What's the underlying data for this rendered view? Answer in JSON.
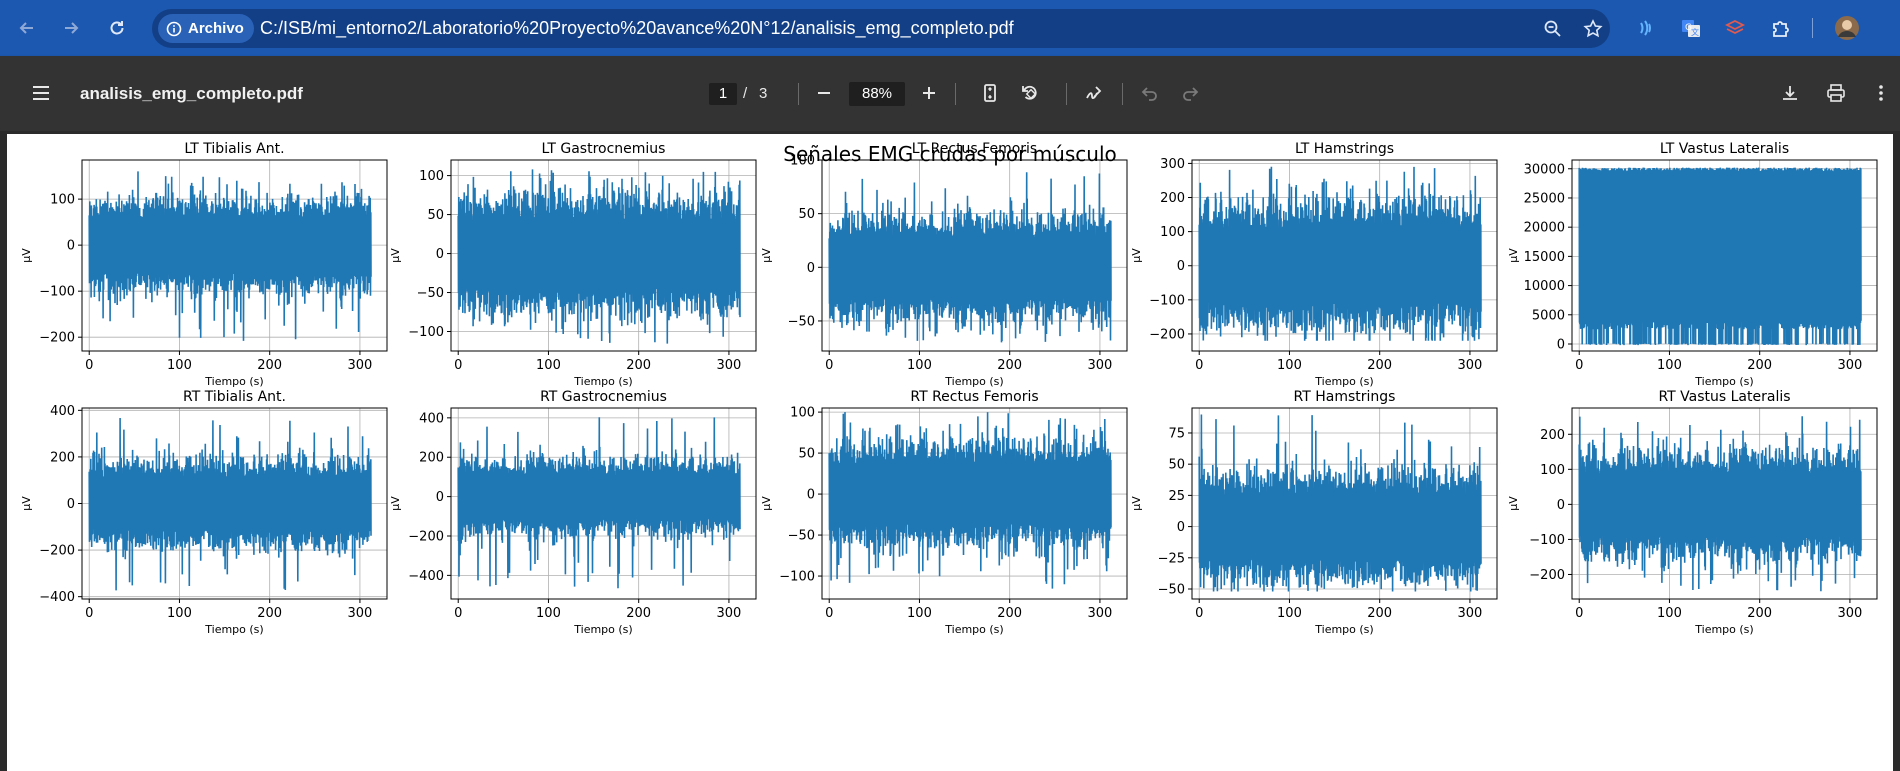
{
  "browser": {
    "secure_chip_label": "Archivo",
    "url": "C:/ISB/mi_entorno2/Laboratorio%20Proyecto%20avance%20N°12/analisis_emg_completo.pdf"
  },
  "pdf_toolbar": {
    "title": "analisis_emg_completo.pdf",
    "current_page": "1",
    "page_separator": "/",
    "total_pages": "3",
    "zoom": "88%"
  },
  "colors": {
    "signal": "#1f77b4",
    "browser_bar": "#1c58b0",
    "toolbar": "#333333"
  },
  "chart_data": {
    "type": "line",
    "title": "Señales EMG crudas por músculo",
    "subplots": [
      {
        "title": "LT Tibialis Ant.",
        "xlabel": "Tiempo (s)",
        "ylabel": "µV",
        "xlim": [
          -8,
          330
        ],
        "ylim": [
          -230,
          185
        ],
        "xticks": [
          0,
          100,
          200,
          300
        ],
        "yticks": [
          -200,
          -100,
          0,
          100
        ],
        "envelope_typical": 80,
        "envelope_peak": 170,
        "envelope_min": -210
      },
      {
        "title": "LT Gastrocnemius",
        "xlabel": "Tiempo (s)",
        "ylabel": "µV",
        "xlim": [
          -8,
          330
        ],
        "ylim": [
          -125,
          120
        ],
        "xticks": [
          0,
          100,
          200,
          300
        ],
        "yticks": [
          -100,
          -50,
          0,
          50,
          100
        ],
        "envelope_typical": 60,
        "envelope_peak": 108,
        "envelope_min": -118
      },
      {
        "title": "LT Rectus Femoris",
        "xlabel": "Tiempo (s)",
        "ylabel": "µV",
        "xlim": [
          -8,
          330
        ],
        "ylim": [
          -78,
          100
        ],
        "xticks": [
          0,
          100,
          200,
          300
        ],
        "yticks": [
          -50,
          0,
          50,
          100
        ],
        "envelope_typical": 38,
        "envelope_peak": 92,
        "envelope_min": -70
      },
      {
        "title": "LT Hamstrings",
        "xlabel": "Tiempo (s)",
        "ylabel": "µV",
        "xlim": [
          -8,
          330
        ],
        "ylim": [
          -250,
          310
        ],
        "xticks": [
          0,
          100,
          200,
          300
        ],
        "yticks": [
          -200,
          -100,
          0,
          100,
          200,
          300
        ],
        "envelope_typical": 150,
        "envelope_peak": 290,
        "envelope_min": -220
      },
      {
        "title": "LT Vastus Lateralis",
        "xlabel": "Tiempo (s)",
        "ylabel": "µV",
        "xlim": [
          -8,
          330
        ],
        "ylim": [
          -1200,
          31500
        ],
        "xticks": [
          0,
          100,
          200,
          300
        ],
        "yticks": [
          0,
          5000,
          10000,
          15000,
          20000,
          25000,
          30000
        ],
        "envelope_typical": 30000,
        "envelope_peak": 30000,
        "envelope_min": 0
      },
      {
        "title": "RT Tibialis Ant.",
        "xlabel": "Tiempo (s)",
        "ylabel": "µV",
        "xlim": [
          -8,
          330
        ],
        "ylim": [
          -410,
          410
        ],
        "xticks": [
          0,
          100,
          200,
          300
        ],
        "yticks": [
          -400,
          -200,
          0,
          200,
          400
        ],
        "envelope_typical": 150,
        "envelope_peak": 370,
        "envelope_min": -380
      },
      {
        "title": "RT Gastrocnemius",
        "xlabel": "Tiempo (s)",
        "ylabel": "µV",
        "xlim": [
          -8,
          330
        ],
        "ylim": [
          -520,
          450
        ],
        "xticks": [
          0,
          100,
          200,
          300
        ],
        "yticks": [
          -400,
          -200,
          0,
          200,
          400
        ],
        "envelope_typical": 150,
        "envelope_peak": 420,
        "envelope_min": -470
      },
      {
        "title": "RT Rectus Femoris",
        "xlabel": "Tiempo (s)",
        "ylabel": "µV",
        "xlim": [
          -8,
          330
        ],
        "ylim": [
          -128,
          105
        ],
        "xticks": [
          0,
          100,
          200,
          300
        ],
        "yticks": [
          -100,
          -50,
          0,
          50,
          100
        ],
        "envelope_typical": 50,
        "envelope_peak": 100,
        "envelope_min": -120
      },
      {
        "title": "RT Hamstrings",
        "xlabel": "Tiempo (s)",
        "ylabel": "µV",
        "xlim": [
          -8,
          330
        ],
        "ylim": [
          -58,
          95
        ],
        "xticks": [
          0,
          100,
          200,
          300
        ],
        "yticks": [
          -50,
          -25,
          0,
          25,
          50,
          75
        ],
        "envelope_typical": 35,
        "envelope_peak": 90,
        "envelope_min": -52
      },
      {
        "title": "RT Vastus Lateralis",
        "xlabel": "Tiempo (s)",
        "ylabel": "µV",
        "xlim": [
          -8,
          330
        ],
        "ylim": [
          -270,
          275
        ],
        "xticks": [
          0,
          100,
          200,
          300
        ],
        "yticks": [
          -200,
          -100,
          0,
          100,
          200
        ],
        "envelope_typical": 120,
        "envelope_peak": 260,
        "envelope_min": -250
      }
    ]
  }
}
